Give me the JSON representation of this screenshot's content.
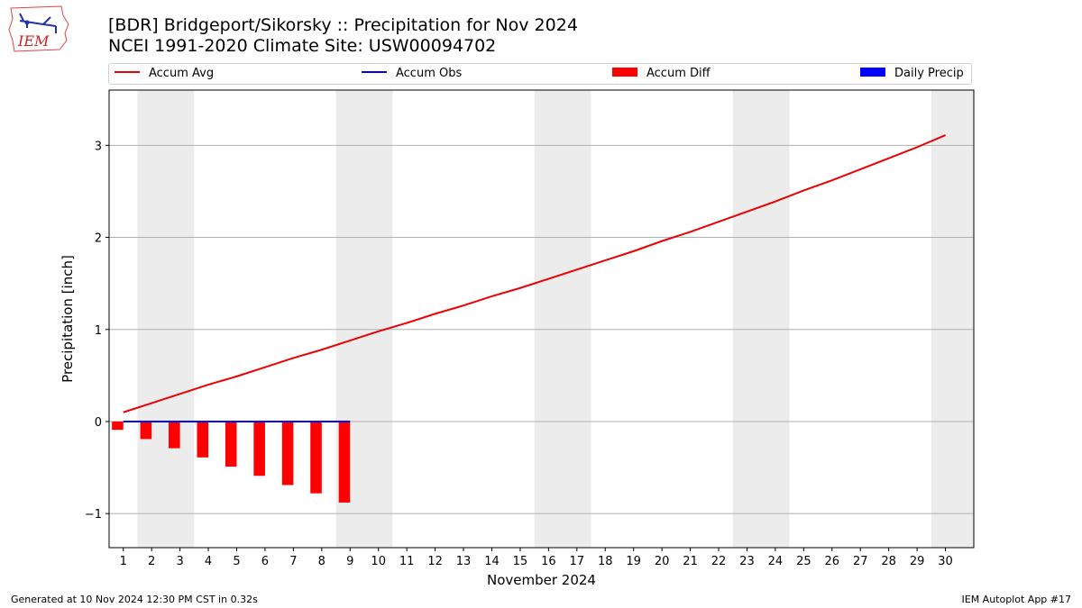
{
  "header": {
    "logo_text": "IEM",
    "title_line1": "[BDR] Bridgeport/Sikorsky :: Precipitation for Nov 2024",
    "title_line2": "NCEI 1991-2020 Climate Site: USW00094702"
  },
  "legend": {
    "items": [
      {
        "label": "Accum Avg",
        "kind": "line",
        "color": "#ee0000"
      },
      {
        "label": "Accum Obs",
        "kind": "line",
        "color": "#0000ee"
      },
      {
        "label": "Accum Diff",
        "kind": "rect",
        "color": "#ff0000"
      },
      {
        "label": "Daily Precip",
        "kind": "rect",
        "color": "#0000ff"
      }
    ]
  },
  "footer": {
    "generated": "Generated at 10 Nov 2024 12:30 PM CST in 0.32s",
    "app": "IEM Autoplot App #17"
  },
  "chart_data": {
    "type": "line",
    "title": "[BDR] Bridgeport/Sikorsky :: Precipitation for Nov 2024",
    "subtitle": "NCEI 1991-2020 Climate Site: USW00094702",
    "xlabel": "November 2024",
    "ylabel": "Precipitation [inch]",
    "xlim": [
      0.5,
      31
    ],
    "ylim": [
      -1.37,
      3.6
    ],
    "x_ticks": [
      1,
      2,
      3,
      4,
      5,
      6,
      7,
      8,
      9,
      10,
      11,
      12,
      13,
      14,
      15,
      16,
      17,
      18,
      19,
      20,
      21,
      22,
      23,
      24,
      25,
      26,
      27,
      28,
      29,
      30
    ],
    "y_ticks": [
      -1,
      0,
      1,
      2,
      3
    ],
    "y_tick_labels": [
      "−1",
      "0",
      "1",
      "2",
      "3"
    ],
    "grid": "horizontal",
    "weekend_shading": [
      [
        1.5,
        3.5
      ],
      [
        8.5,
        10.5
      ],
      [
        15.5,
        17.5
      ],
      [
        22.5,
        24.5
      ],
      [
        29.5,
        31
      ]
    ],
    "series": [
      {
        "name": "Accum Avg",
        "kind": "line",
        "color": "#ee0000",
        "x": [
          1,
          2,
          3,
          4,
          5,
          6,
          7,
          8,
          9,
          10,
          11,
          12,
          13,
          14,
          15,
          16,
          17,
          18,
          19,
          20,
          21,
          22,
          23,
          24,
          25,
          26,
          27,
          28,
          29,
          30
        ],
        "values": [
          0.1,
          0.2,
          0.3,
          0.4,
          0.49,
          0.59,
          0.69,
          0.78,
          0.88,
          0.98,
          1.07,
          1.17,
          1.26,
          1.36,
          1.45,
          1.55,
          1.65,
          1.75,
          1.85,
          1.96,
          2.06,
          2.17,
          2.28,
          2.39,
          2.51,
          2.62,
          2.74,
          2.86,
          2.98,
          3.11
        ]
      },
      {
        "name": "Accum Obs",
        "kind": "line",
        "color": "#0000ee",
        "x": [
          1,
          2,
          3,
          4,
          5,
          6,
          7,
          8,
          9
        ],
        "values": [
          0,
          0,
          0,
          0,
          0,
          0,
          0,
          0,
          0
        ]
      },
      {
        "name": "Accum Diff",
        "kind": "bar",
        "color": "#ff0000",
        "x": [
          1,
          2,
          3,
          4,
          5,
          6,
          7,
          8,
          9
        ],
        "values": [
          -0.09,
          -0.19,
          -0.29,
          -0.39,
          -0.49,
          -0.59,
          -0.69,
          -0.78,
          -0.88
        ]
      },
      {
        "name": "Daily Precip",
        "kind": "bar",
        "color": "#0000ff",
        "x": [
          1,
          2,
          3,
          4,
          5,
          6,
          7,
          8,
          9
        ],
        "values": [
          0,
          0,
          0,
          0,
          0,
          0,
          0,
          0,
          0
        ]
      }
    ]
  }
}
